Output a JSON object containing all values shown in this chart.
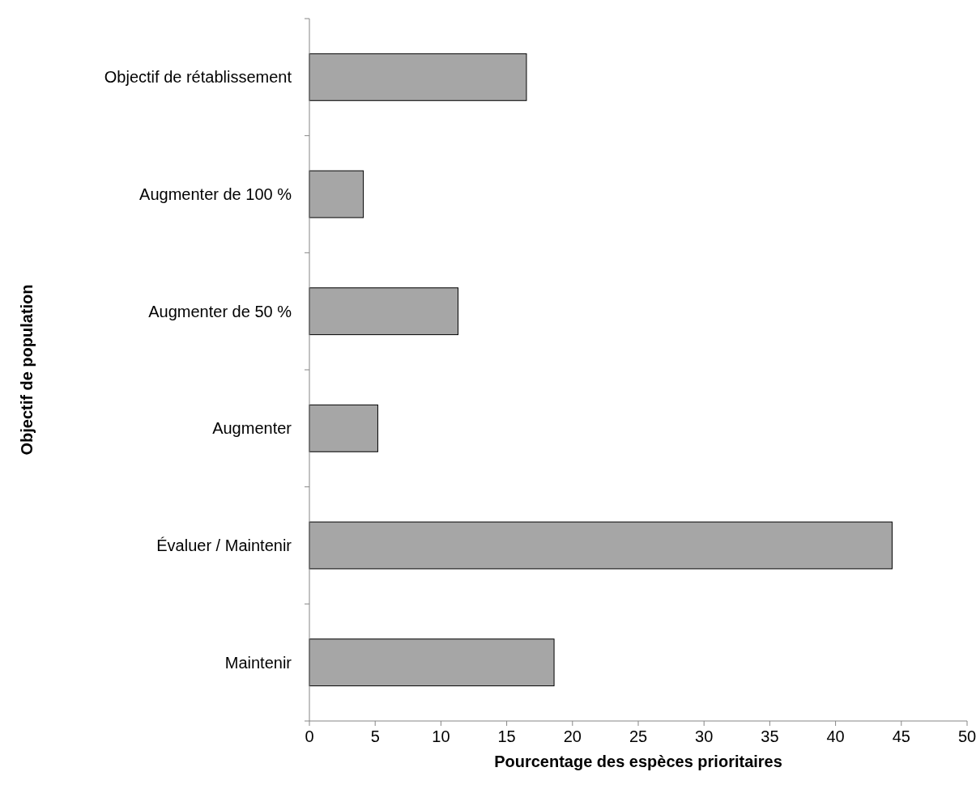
{
  "chart_data": {
    "type": "bar",
    "orientation": "horizontal",
    "xlabel": "Pourcentage des espèces prioritaires",
    "ylabel": "Objectif de population",
    "categories": [
      "Objectif de rétablissement",
      "Augmenter de 100 %",
      "Augmenter de 50 %",
      "Augmenter",
      "Évaluer / Maintenir",
      "Maintenir"
    ],
    "values": [
      16.5,
      4.1,
      11.3,
      5.2,
      44.3,
      18.6
    ],
    "color": "#a6a6a6",
    "xlim": [
      0,
      50
    ],
    "xticks": [
      0,
      5,
      10,
      15,
      20,
      25,
      30,
      35,
      40,
      45,
      50
    ],
    "grid": false
  }
}
